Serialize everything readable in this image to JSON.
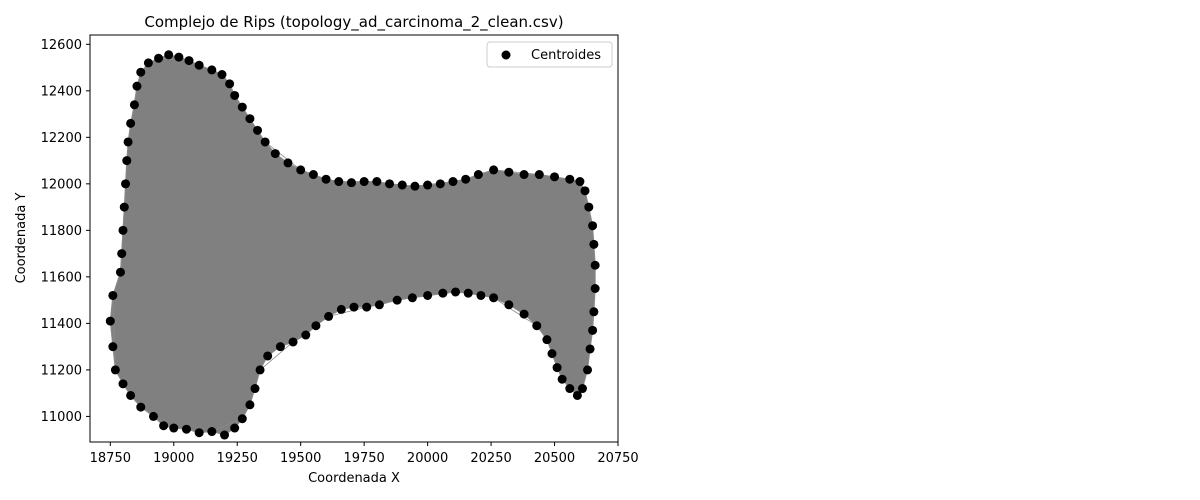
{
  "chart_data": {
    "type": "scatter",
    "title": "Complejo de Rips (topology_ad_carcinoma_2_clean.csv)",
    "xlabel": "Coordenada X",
    "ylabel": "Coordenada Y",
    "xlim": [
      18670,
      20750
    ],
    "ylim": [
      10890,
      12640
    ],
    "xticks": [
      18750,
      19000,
      19250,
      19500,
      19750,
      20000,
      20250,
      20500,
      20750
    ],
    "yticks": [
      11000,
      11200,
      11400,
      11600,
      11800,
      12000,
      12200,
      12400,
      12600
    ],
    "grid": false,
    "legend": {
      "position": "top-right",
      "entries": [
        "Centroides"
      ]
    },
    "colors": {
      "points": "#000000",
      "complex_fill": "#808080",
      "complex_edge": "#8a8a8a"
    },
    "series": [
      {
        "name": "Centroides",
        "points": [
          [
            18760,
            11520
          ],
          [
            18750,
            11410
          ],
          [
            18760,
            11300
          ],
          [
            18770,
            11200
          ],
          [
            18800,
            11140
          ],
          [
            18830,
            11090
          ],
          [
            18870,
            11040
          ],
          [
            18920,
            11000
          ],
          [
            18960,
            10960
          ],
          [
            19000,
            10950
          ],
          [
            19050,
            10945
          ],
          [
            19100,
            10930
          ],
          [
            19150,
            10935
          ],
          [
            19200,
            10920
          ],
          [
            19240,
            10950
          ],
          [
            19270,
            10990
          ],
          [
            19300,
            11050
          ],
          [
            19320,
            11120
          ],
          [
            19340,
            11200
          ],
          [
            19370,
            11260
          ],
          [
            19420,
            11300
          ],
          [
            19470,
            11320
          ],
          [
            19520,
            11350
          ],
          [
            19560,
            11390
          ],
          [
            19610,
            11430
          ],
          [
            19660,
            11460
          ],
          [
            19710,
            11470
          ],
          [
            19760,
            11470
          ],
          [
            19810,
            11480
          ],
          [
            19880,
            11500
          ],
          [
            19940,
            11510
          ],
          [
            20000,
            11520
          ],
          [
            20060,
            11530
          ],
          [
            20110,
            11535
          ],
          [
            20160,
            11530
          ],
          [
            20210,
            11520
          ],
          [
            20260,
            11510
          ],
          [
            20320,
            11480
          ],
          [
            20380,
            11440
          ],
          [
            20430,
            11390
          ],
          [
            20470,
            11330
          ],
          [
            20490,
            11270
          ],
          [
            20510,
            11210
          ],
          [
            20530,
            11160
          ],
          [
            20560,
            11120
          ],
          [
            20590,
            11090
          ],
          [
            20610,
            11120
          ],
          [
            20630,
            11200
          ],
          [
            20640,
            11290
          ],
          [
            20650,
            11370
          ],
          [
            20655,
            11450
          ],
          [
            20660,
            11550
          ],
          [
            20660,
            11650
          ],
          [
            20655,
            11740
          ],
          [
            20650,
            11820
          ],
          [
            20635,
            11900
          ],
          [
            20620,
            11970
          ],
          [
            20600,
            12010
          ],
          [
            20560,
            12020
          ],
          [
            20500,
            12030
          ],
          [
            20440,
            12040
          ],
          [
            20380,
            12040
          ],
          [
            20320,
            12050
          ],
          [
            20260,
            12060
          ],
          [
            20200,
            12040
          ],
          [
            20150,
            12020
          ],
          [
            20100,
            12010
          ],
          [
            20050,
            12000
          ],
          [
            20000,
            11995
          ],
          [
            19950,
            11990
          ],
          [
            19900,
            11995
          ],
          [
            19850,
            12000
          ],
          [
            19800,
            12010
          ],
          [
            19750,
            12010
          ],
          [
            19700,
            12005
          ],
          [
            19650,
            12010
          ],
          [
            19600,
            12020
          ],
          [
            19550,
            12040
          ],
          [
            19500,
            12060
          ],
          [
            19450,
            12090
          ],
          [
            19400,
            12130
          ],
          [
            19360,
            12180
          ],
          [
            19330,
            12230
          ],
          [
            19300,
            12280
          ],
          [
            19270,
            12330
          ],
          [
            19240,
            12380
          ],
          [
            19220,
            12430
          ],
          [
            19190,
            12470
          ],
          [
            19150,
            12490
          ],
          [
            19100,
            12510
          ],
          [
            19060,
            12530
          ],
          [
            19020,
            12545
          ],
          [
            18980,
            12555
          ],
          [
            18940,
            12540
          ],
          [
            18900,
            12520
          ],
          [
            18870,
            12480
          ],
          [
            18855,
            12420
          ],
          [
            18845,
            12340
          ],
          [
            18830,
            12260
          ],
          [
            18820,
            12180
          ],
          [
            18815,
            12100
          ],
          [
            18810,
            12000
          ],
          [
            18805,
            11900
          ],
          [
            18800,
            11800
          ],
          [
            18795,
            11700
          ],
          [
            18790,
            11620
          ]
        ]
      }
    ]
  }
}
